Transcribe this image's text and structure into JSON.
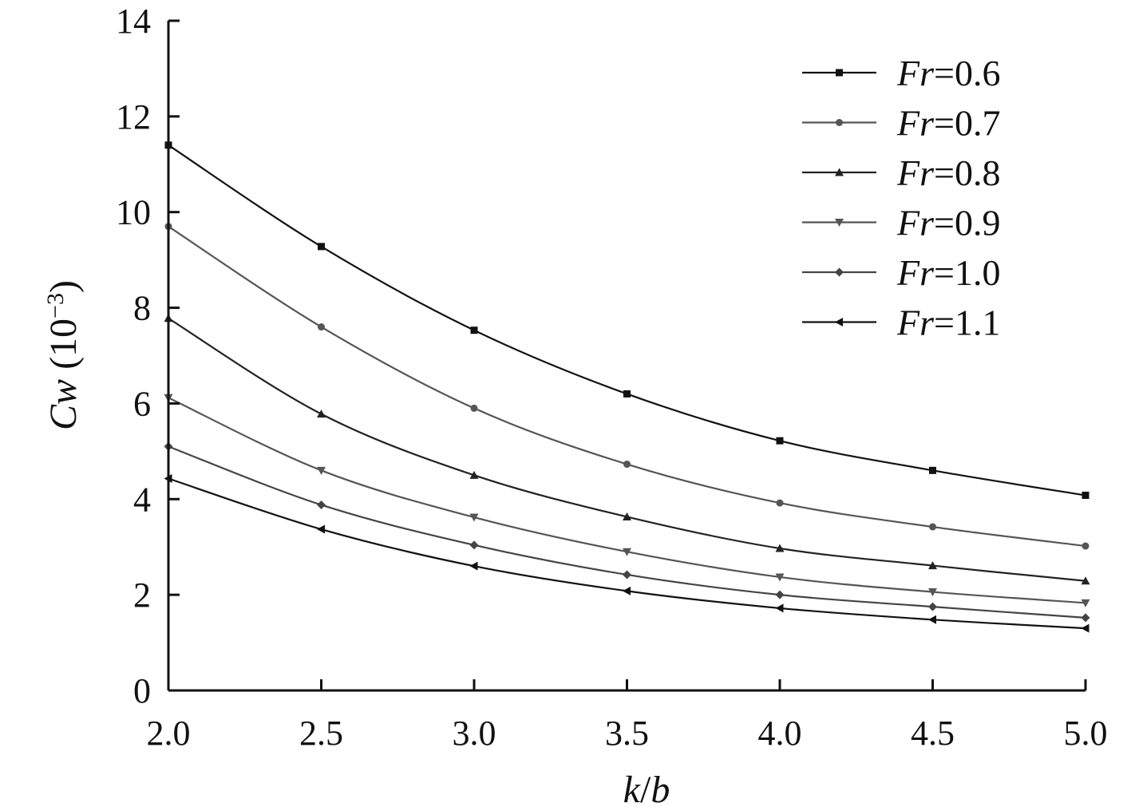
{
  "chart_data": {
    "type": "line",
    "x": [
      2.0,
      2.5,
      3.0,
      3.5,
      4.0,
      4.5,
      5.0
    ],
    "x_tick_labels": [
      "2.0",
      "2.5",
      "3.0",
      "3.5",
      "4.0",
      "4.5",
      "5.0"
    ],
    "y_ticks": [
      0,
      2,
      4,
      6,
      8,
      10,
      12,
      14
    ],
    "y_tick_labels": [
      "0",
      "2",
      "4",
      "6",
      "8",
      "10",
      "12",
      "14"
    ],
    "xlim": [
      2.0,
      5.0
    ],
    "ylim": [
      0,
      14
    ],
    "xlabel": {
      "var": "k",
      "sep": "/",
      "var2": "b"
    },
    "ylabel": {
      "var": "Cw",
      "unit_open": " (10",
      "unit_exp": "−3",
      "unit_close": ")"
    },
    "title": "",
    "grid": false,
    "legend_position": "top-right",
    "series": [
      {
        "name_var": "Fr",
        "name_value": "=0.6",
        "marker": "square",
        "color": "#111111",
        "values": [
          11.4,
          9.28,
          7.53,
          6.2,
          5.22,
          4.6,
          4.08
        ]
      },
      {
        "name_var": "Fr",
        "name_value": "=0.7",
        "marker": "circle",
        "color": "#555555",
        "values": [
          9.7,
          7.6,
          5.9,
          4.73,
          3.92,
          3.42,
          3.02
        ]
      },
      {
        "name_var": "Fr",
        "name_value": "=0.8",
        "marker": "triangle-up",
        "color": "#222222",
        "values": [
          7.78,
          5.78,
          4.5,
          3.63,
          2.97,
          2.61,
          2.29
        ]
      },
      {
        "name_var": "Fr",
        "name_value": "=0.9",
        "marker": "triangle-down",
        "color": "#555555",
        "values": [
          6.12,
          4.6,
          3.62,
          2.9,
          2.37,
          2.06,
          1.83
        ]
      },
      {
        "name_var": "Fr",
        "name_value": "=1.0",
        "marker": "diamond",
        "color": "#444444",
        "values": [
          5.1,
          3.88,
          3.04,
          2.42,
          2.0,
          1.75,
          1.52
        ]
      },
      {
        "name_var": "Fr",
        "name_value": "=1.1",
        "marker": "triangle-left",
        "color": "#111111",
        "values": [
          4.43,
          3.37,
          2.6,
          2.08,
          1.72,
          1.48,
          1.3
        ]
      }
    ]
  }
}
